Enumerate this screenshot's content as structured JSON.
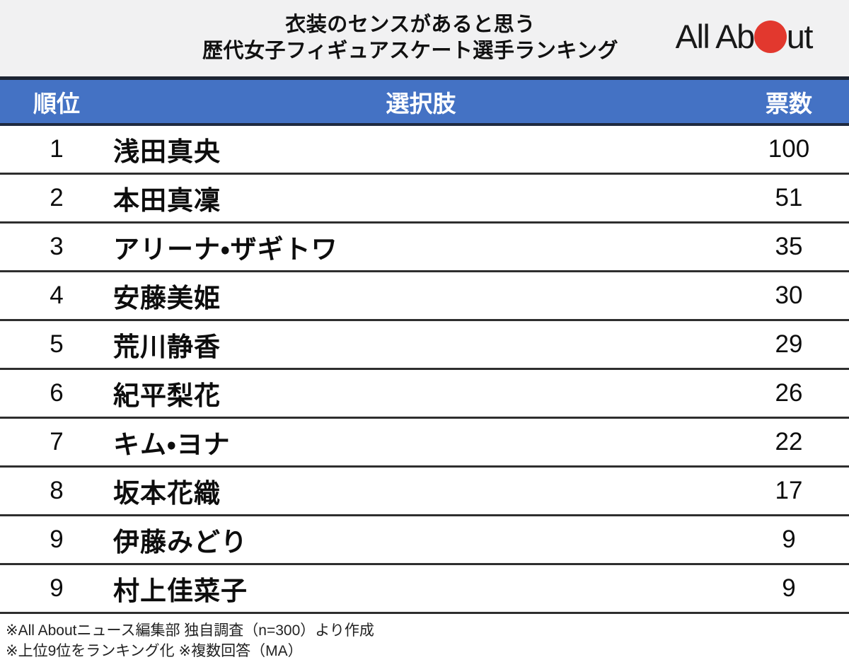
{
  "header": {
    "title_line1": "衣装のセンスがあると思う",
    "title_line2": "歴代女子フィギュアスケート選手ランキング",
    "logo": {
      "name": "All About",
      "text_before": "All Ab",
      "text_after": "ut",
      "dot_color": "#e2382e"
    }
  },
  "table": {
    "header_bg": "#4472c4",
    "columns": {
      "rank": "順位",
      "choice": "選択肢",
      "votes": "票数"
    },
    "rows": [
      {
        "rank": "1",
        "name": "浅田真央",
        "votes": "100"
      },
      {
        "rank": "2",
        "name": "本田真凜",
        "votes": "51"
      },
      {
        "rank": "3",
        "name": "アリーナ・ザギトワ",
        "votes": "35"
      },
      {
        "rank": "4",
        "name": "安藤美姫",
        "votes": "30"
      },
      {
        "rank": "5",
        "name": "荒川静香",
        "votes": "29"
      },
      {
        "rank": "6",
        "name": "紀平梨花",
        "votes": "26"
      },
      {
        "rank": "7",
        "name": "キム・ヨナ",
        "votes": "22"
      },
      {
        "rank": "8",
        "name": "坂本花織",
        "votes": "17"
      },
      {
        "rank": "9",
        "name": "伊藤みどり",
        "votes": "9"
      },
      {
        "rank": "9",
        "name": "村上佳菜子",
        "votes": "9"
      }
    ]
  },
  "footer": {
    "note1": "※All Aboutニュース編集部 独自調査（n=300）より作成",
    "note2": "※上位9位をランキング化 ※複数回答（MA）"
  },
  "chart_data": {
    "type": "table",
    "title": "衣装のセンスがあると思う 歴代女子フィギュアスケート選手ランキング",
    "columns": [
      "順位",
      "選択肢",
      "票数"
    ],
    "categories": [
      "浅田真央",
      "本田真凜",
      "アリーナ・ザギトワ",
      "安藤美姫",
      "荒川静香",
      "紀平梨花",
      "キム・ヨナ",
      "坂本花織",
      "伊藤みどり",
      "村上佳菜子"
    ],
    "ranks": [
      1,
      2,
      3,
      4,
      5,
      6,
      7,
      8,
      9,
      9
    ],
    "values": [
      100,
      51,
      35,
      30,
      29,
      26,
      22,
      17,
      9,
      9
    ],
    "source_note": "All Aboutニュース編集部 独自調査（n=300）",
    "sample_size": 300
  }
}
